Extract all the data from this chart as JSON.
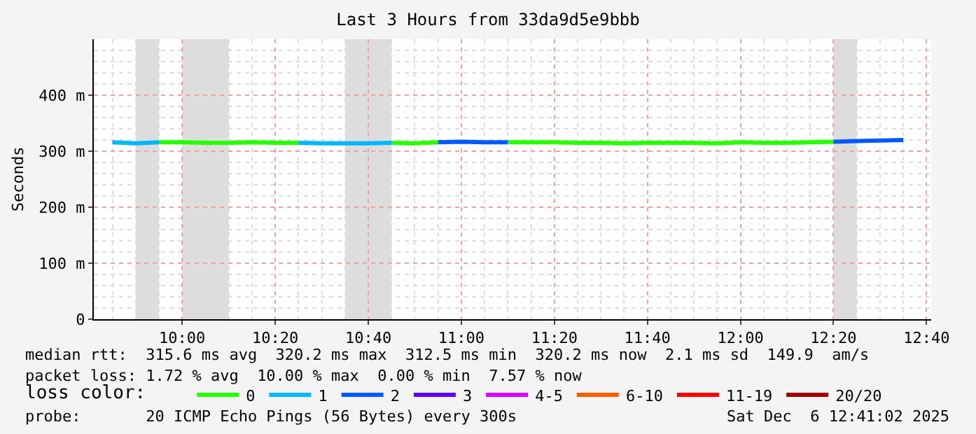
{
  "chart_data": {
    "type": "line",
    "title": "Last 3 Hours from 33da9d5e9bbb",
    "ylabel": "Seconds",
    "legend_title": "loss color:",
    "x": [
      "2025-12-06T09:45",
      "2025-12-06T09:50",
      "2025-12-06T09:55",
      "2025-12-06T10:00",
      "2025-12-06T10:05",
      "2025-12-06T10:10",
      "2025-12-06T10:15",
      "2025-12-06T10:20",
      "2025-12-06T10:25",
      "2025-12-06T10:30",
      "2025-12-06T10:35",
      "2025-12-06T10:40",
      "2025-12-06T10:45",
      "2025-12-06T10:50",
      "2025-12-06T10:55",
      "2025-12-06T11:00",
      "2025-12-06T11:05",
      "2025-12-06T11:10",
      "2025-12-06T11:15",
      "2025-12-06T11:20",
      "2025-12-06T11:25",
      "2025-12-06T11:30",
      "2025-12-06T11:35",
      "2025-12-06T11:40",
      "2025-12-06T11:45",
      "2025-12-06T11:50",
      "2025-12-06T11:55",
      "2025-12-06T12:00",
      "2025-12-06T12:05",
      "2025-12-06T12:10",
      "2025-12-06T12:15",
      "2025-12-06T12:20",
      "2025-12-06T12:25",
      "2025-12-06T12:30",
      "2025-12-06T12:35"
    ],
    "series": [
      {
        "name": "0",
        "color": "#26ff00",
        "values": [
          null,
          null,
          316,
          316,
          315,
          315,
          316,
          315,
          315,
          null,
          null,
          null,
          315,
          314,
          316,
          null,
          null,
          316,
          316,
          316,
          315,
          315,
          314,
          315,
          315,
          315,
          314,
          316,
          315,
          315,
          316,
          317,
          null,
          null,
          null
        ]
      },
      {
        "name": "1",
        "color": "#00b8ff",
        "values": [
          316,
          314,
          316,
          null,
          null,
          null,
          null,
          null,
          315,
          314,
          314,
          314,
          315,
          null,
          null,
          null,
          null,
          null,
          null,
          null,
          null,
          null,
          null,
          null,
          null,
          null,
          null,
          null,
          null,
          null,
          null,
          null,
          null,
          null,
          null
        ]
      },
      {
        "name": "2",
        "color": "#0059ff",
        "values": [
          null,
          null,
          null,
          null,
          null,
          null,
          null,
          null,
          null,
          null,
          null,
          null,
          null,
          null,
          316,
          317,
          316,
          316,
          null,
          null,
          null,
          null,
          null,
          null,
          null,
          null,
          null,
          null,
          null,
          null,
          null,
          317,
          318,
          319,
          320
        ]
      },
      {
        "name": "3",
        "color": "#5e00ff",
        "values": [
          null,
          null,
          null,
          null,
          null,
          null,
          null,
          null,
          null,
          null,
          null,
          null,
          null,
          null,
          null,
          null,
          null,
          null,
          null,
          null,
          null,
          null,
          null,
          null,
          null,
          null,
          null,
          null,
          null,
          null,
          null,
          null,
          null,
          null,
          null
        ]
      },
      {
        "name": "4-5",
        "color": "#dd00ff",
        "values": [
          null,
          null,
          null,
          null,
          null,
          null,
          null,
          null,
          null,
          null,
          null,
          null,
          null,
          null,
          null,
          null,
          null,
          null,
          null,
          null,
          null,
          null,
          null,
          null,
          null,
          null,
          null,
          null,
          null,
          null,
          null,
          null,
          null,
          null,
          null
        ]
      },
      {
        "name": "6-10",
        "color": "#ff5e00",
        "values": [
          null,
          null,
          null,
          null,
          null,
          null,
          null,
          null,
          null,
          null,
          null,
          null,
          null,
          null,
          null,
          null,
          null,
          null,
          null,
          null,
          null,
          null,
          null,
          null,
          null,
          null,
          null,
          null,
          null,
          null,
          null,
          null,
          null,
          null,
          null
        ]
      },
      {
        "name": "11-19",
        "color": "#ff0000",
        "values": [
          null,
          null,
          null,
          null,
          null,
          null,
          null,
          null,
          null,
          null,
          null,
          null,
          null,
          null,
          null,
          null,
          null,
          null,
          null,
          null,
          null,
          null,
          null,
          null,
          null,
          null,
          null,
          null,
          null,
          null,
          null,
          null,
          null,
          null,
          null
        ]
      },
      {
        "name": "20/20",
        "color": "#a10000",
        "values": [
          null,
          null,
          null,
          null,
          null,
          null,
          null,
          null,
          null,
          null,
          null,
          null,
          null,
          null,
          null,
          null,
          null,
          null,
          null,
          null,
          null,
          null,
          null,
          null,
          null,
          null,
          null,
          null,
          null,
          null,
          null,
          null,
          null,
          null,
          null
        ]
      }
    ],
    "xlim": [
      "2025-12-06T09:41",
      "2025-12-06T12:41"
    ],
    "xticks": [
      {
        "value": "2025-12-06T10:00",
        "label": "10:00"
      },
      {
        "value": "2025-12-06T10:20",
        "label": "10:20"
      },
      {
        "value": "2025-12-06T10:40",
        "label": "10:40"
      },
      {
        "value": "2025-12-06T11:00",
        "label": "11:00"
      },
      {
        "value": "2025-12-06T11:20",
        "label": "11:20"
      },
      {
        "value": "2025-12-06T11:40",
        "label": "11:40"
      },
      {
        "value": "2025-12-06T12:00",
        "label": "12:00"
      },
      {
        "value": "2025-12-06T12:20",
        "label": "12:20"
      },
      {
        "value": "2025-12-06T12:40",
        "label": "12:40"
      }
    ],
    "ylim": [
      0,
      500
    ],
    "yticks": [
      0,
      {
        "value": 100,
        "label": "100 m"
      },
      {
        "value": 200,
        "label": "200 m"
      },
      {
        "value": 300,
        "label": "300 m"
      },
      {
        "value": 400,
        "label": "400 m"
      }
    ],
    "bands": [
      {
        "axis": "x",
        "from": "2025-12-06T09:50",
        "to": "2025-12-06T09:55",
        "color": "#dddddd"
      },
      {
        "axis": "x",
        "from": "2025-12-06T10:00",
        "to": "2025-12-06T10:10",
        "color": "#dddddd"
      },
      {
        "axis": "x",
        "from": "2025-12-06T10:35",
        "to": "2025-12-06T10:45",
        "color": "#dddddd"
      },
      {
        "axis": "x",
        "from": "2025-12-06T12:20",
        "to": "2025-12-06T12:25",
        "color": "#dddddd"
      }
    ],
    "grid": true,
    "legend": "bottom",
    "line_style": "solid",
    "annotations": [
      "median rtt:  315.6 ms avg  320.2 ms max  312.5 ms min  320.2 ms now  2.1 ms sd  149.9  am/s",
      "packet loss: 1.72 % avg  10.00 % max  0.00 % min  7.57 % now",
      "probe:       20 ICMP Echo Pings (56 Bytes) every 300s",
      "Sat Dec  6 12:41:02 2025"
    ]
  }
}
